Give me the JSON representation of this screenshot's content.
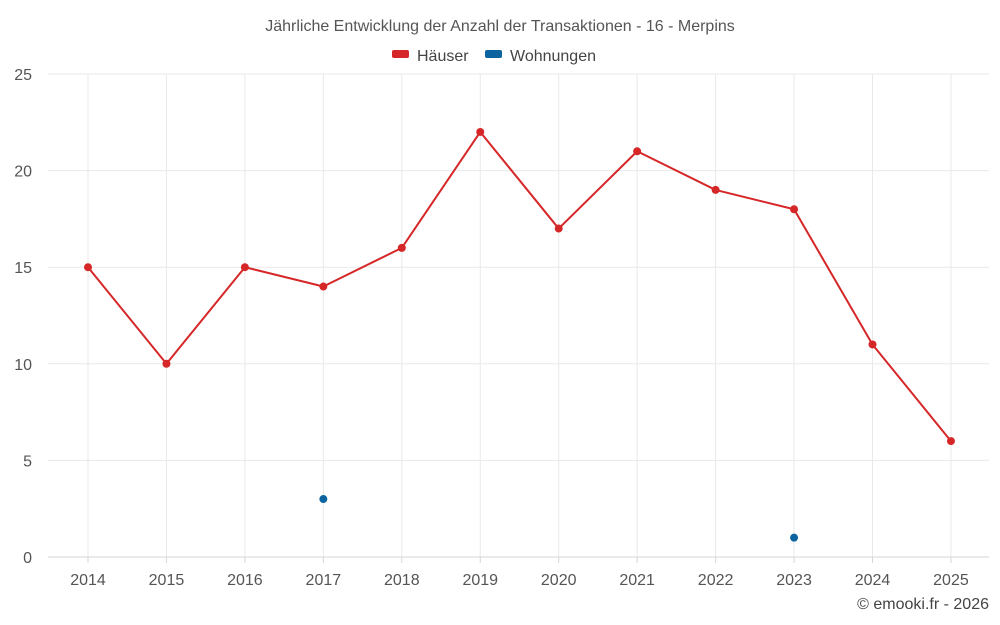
{
  "chart_data": {
    "type": "line",
    "title": "Jährliche Entwicklung der Anzahl der Transaktionen - 16 - Merpins",
    "categories": [
      "2014",
      "2015",
      "2016",
      "2017",
      "2018",
      "2019",
      "2020",
      "2021",
      "2022",
      "2023",
      "2024",
      "2025"
    ],
    "series": [
      {
        "name": "Häuser",
        "color": "#d62728",
        "values": [
          15,
          10,
          15,
          14,
          16,
          22,
          17,
          21,
          19,
          18,
          11,
          6
        ]
      },
      {
        "name": "Wohnungen",
        "color": "#0b64a0",
        "values": [
          null,
          null,
          null,
          3,
          null,
          null,
          null,
          null,
          null,
          1,
          null,
          null
        ]
      }
    ],
    "ylim": [
      0,
      25
    ],
    "yticks": [
      0,
      5,
      10,
      15,
      20,
      25
    ],
    "grid": true,
    "legend": "top-center",
    "xlabel": "",
    "ylabel": ""
  },
  "credit": "© emooki.fr - 2026"
}
